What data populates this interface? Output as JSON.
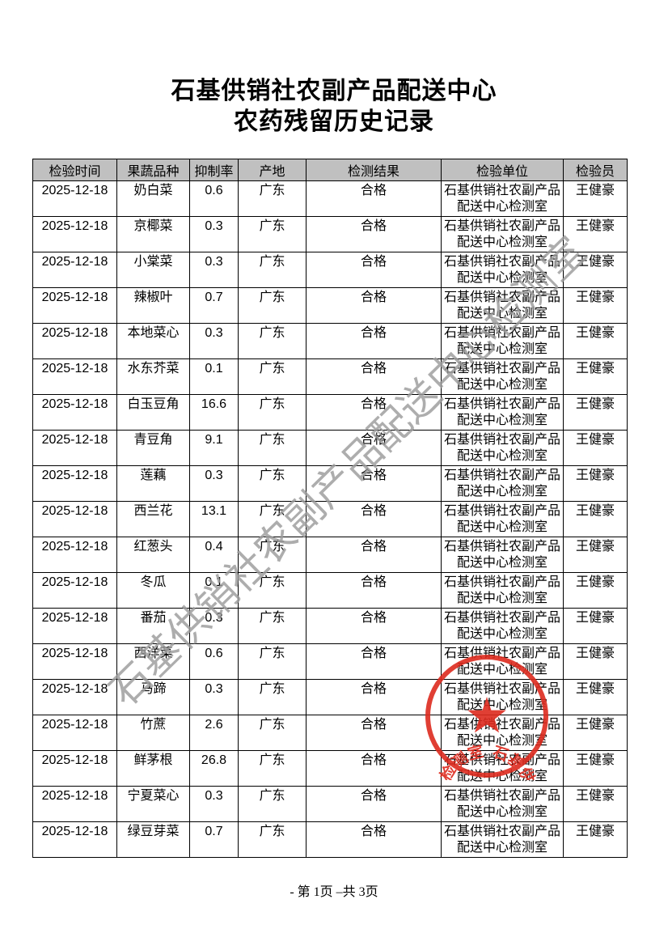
{
  "page": {
    "title_line1": "石基供销社农副产品配送中心",
    "title_line2": "农药残留历史记录",
    "footer": "- 第 1页 –共 3页"
  },
  "watermark": {
    "text": "石基供销社农副产品配送中心检测室",
    "color": "#9c9c9c",
    "angle_deg": -44.5
  },
  "stamp": {
    "text": "石基供销社农副产品配送中心检测室",
    "color": "#dd2b1f",
    "star": "star-shape"
  },
  "table": {
    "headers": [
      "检验时间",
      "果蔬品种",
      "抑制率",
      "产地",
      "检测结果",
      "检验单位",
      "检验员"
    ],
    "header_bg": "#c0c0c0",
    "rows": [
      {
        "date": "2025-12-18",
        "variety": "奶白菜",
        "rate": "0.6",
        "origin": "广东",
        "result": "合格",
        "unit": "石基供销社农副产品配送中心检测室",
        "inspector": "王健豪"
      },
      {
        "date": "2025-12-18",
        "variety": "京椰菜",
        "rate": "0.3",
        "origin": "广东",
        "result": "合格",
        "unit": "石基供销社农副产品配送中心检测室",
        "inspector": "王健豪"
      },
      {
        "date": "2025-12-18",
        "variety": "小棠菜",
        "rate": "0.3",
        "origin": "广东",
        "result": "合格",
        "unit": "石基供销社农副产品配送中心检测室",
        "inspector": "王健豪"
      },
      {
        "date": "2025-12-18",
        "variety": "辣椒叶",
        "rate": "0.7",
        "origin": "广东",
        "result": "合格",
        "unit": "石基供销社农副产品配送中心检测室",
        "inspector": "王健豪"
      },
      {
        "date": "2025-12-18",
        "variety": "本地菜心",
        "rate": "0.3",
        "origin": "广东",
        "result": "合格",
        "unit": "石基供销社农副产品配送中心检测室",
        "inspector": "王健豪"
      },
      {
        "date": "2025-12-18",
        "variety": "水东芥菜",
        "rate": "0.1",
        "origin": "广东",
        "result": "合格",
        "unit": "石基供销社农副产品配送中心检测室",
        "inspector": "王健豪"
      },
      {
        "date": "2025-12-18",
        "variety": "白玉豆角",
        "rate": "16.6",
        "origin": "广东",
        "result": "合格",
        "unit": "石基供销社农副产品配送中心检测室",
        "inspector": "王健豪"
      },
      {
        "date": "2025-12-18",
        "variety": "青豆角",
        "rate": "9.1",
        "origin": "广东",
        "result": "合格",
        "unit": "石基供销社农副产品配送中心检测室",
        "inspector": "王健豪"
      },
      {
        "date": "2025-12-18",
        "variety": "莲藕",
        "rate": "0.3",
        "origin": "广东",
        "result": "合格",
        "unit": "石基供销社农副产品配送中心检测室",
        "inspector": "王健豪"
      },
      {
        "date": "2025-12-18",
        "variety": "西兰花",
        "rate": "13.1",
        "origin": "广东",
        "result": "合格",
        "unit": "石基供销社农副产品配送中心检测室",
        "inspector": "王健豪"
      },
      {
        "date": "2025-12-18",
        "variety": "红葱头",
        "rate": "0.4",
        "origin": "广东",
        "result": "合格",
        "unit": "石基供销社农副产品配送中心检测室",
        "inspector": "王健豪"
      },
      {
        "date": "2025-12-18",
        "variety": "冬瓜",
        "rate": "0.1",
        "origin": "广东",
        "result": "合格",
        "unit": "石基供销社农副产品配送中心检测室",
        "inspector": "王健豪"
      },
      {
        "date": "2025-12-18",
        "variety": "番茄",
        "rate": "0.3",
        "origin": "广东",
        "result": "合格",
        "unit": "石基供销社农副产品配送中心检测室",
        "inspector": "王健豪"
      },
      {
        "date": "2025-12-18",
        "variety": "西洋菜",
        "rate": "0.6",
        "origin": "广东",
        "result": "合格",
        "unit": "石基供销社农副产品配送中心检测室",
        "inspector": "王健豪"
      },
      {
        "date": "2025-12-18",
        "variety": "马蹄",
        "rate": "0.3",
        "origin": "广东",
        "result": "合格",
        "unit": "石基供销社农副产品配送中心检测室",
        "inspector": "王健豪"
      },
      {
        "date": "2025-12-18",
        "variety": "竹蔗",
        "rate": "2.6",
        "origin": "广东",
        "result": "合格",
        "unit": "石基供销社农副产品配送中心检测室",
        "inspector": "王健豪"
      },
      {
        "date": "2025-12-18",
        "variety": "鲜茅根",
        "rate": "26.8",
        "origin": "广东",
        "result": "合格",
        "unit": "石基供销社农副产品配送中心检测室",
        "inspector": "王健豪"
      },
      {
        "date": "2025-12-18",
        "variety": "宁夏菜心",
        "rate": "0.3",
        "origin": "广东",
        "result": "合格",
        "unit": "石基供销社农副产品配送中心检测室",
        "inspector": "王健豪"
      },
      {
        "date": "2025-12-18",
        "variety": "绿豆芽菜",
        "rate": "0.7",
        "origin": "广东",
        "result": "合格",
        "unit": "石基供销社农副产品配送中心检测室",
        "inspector": "王健豪"
      }
    ]
  }
}
